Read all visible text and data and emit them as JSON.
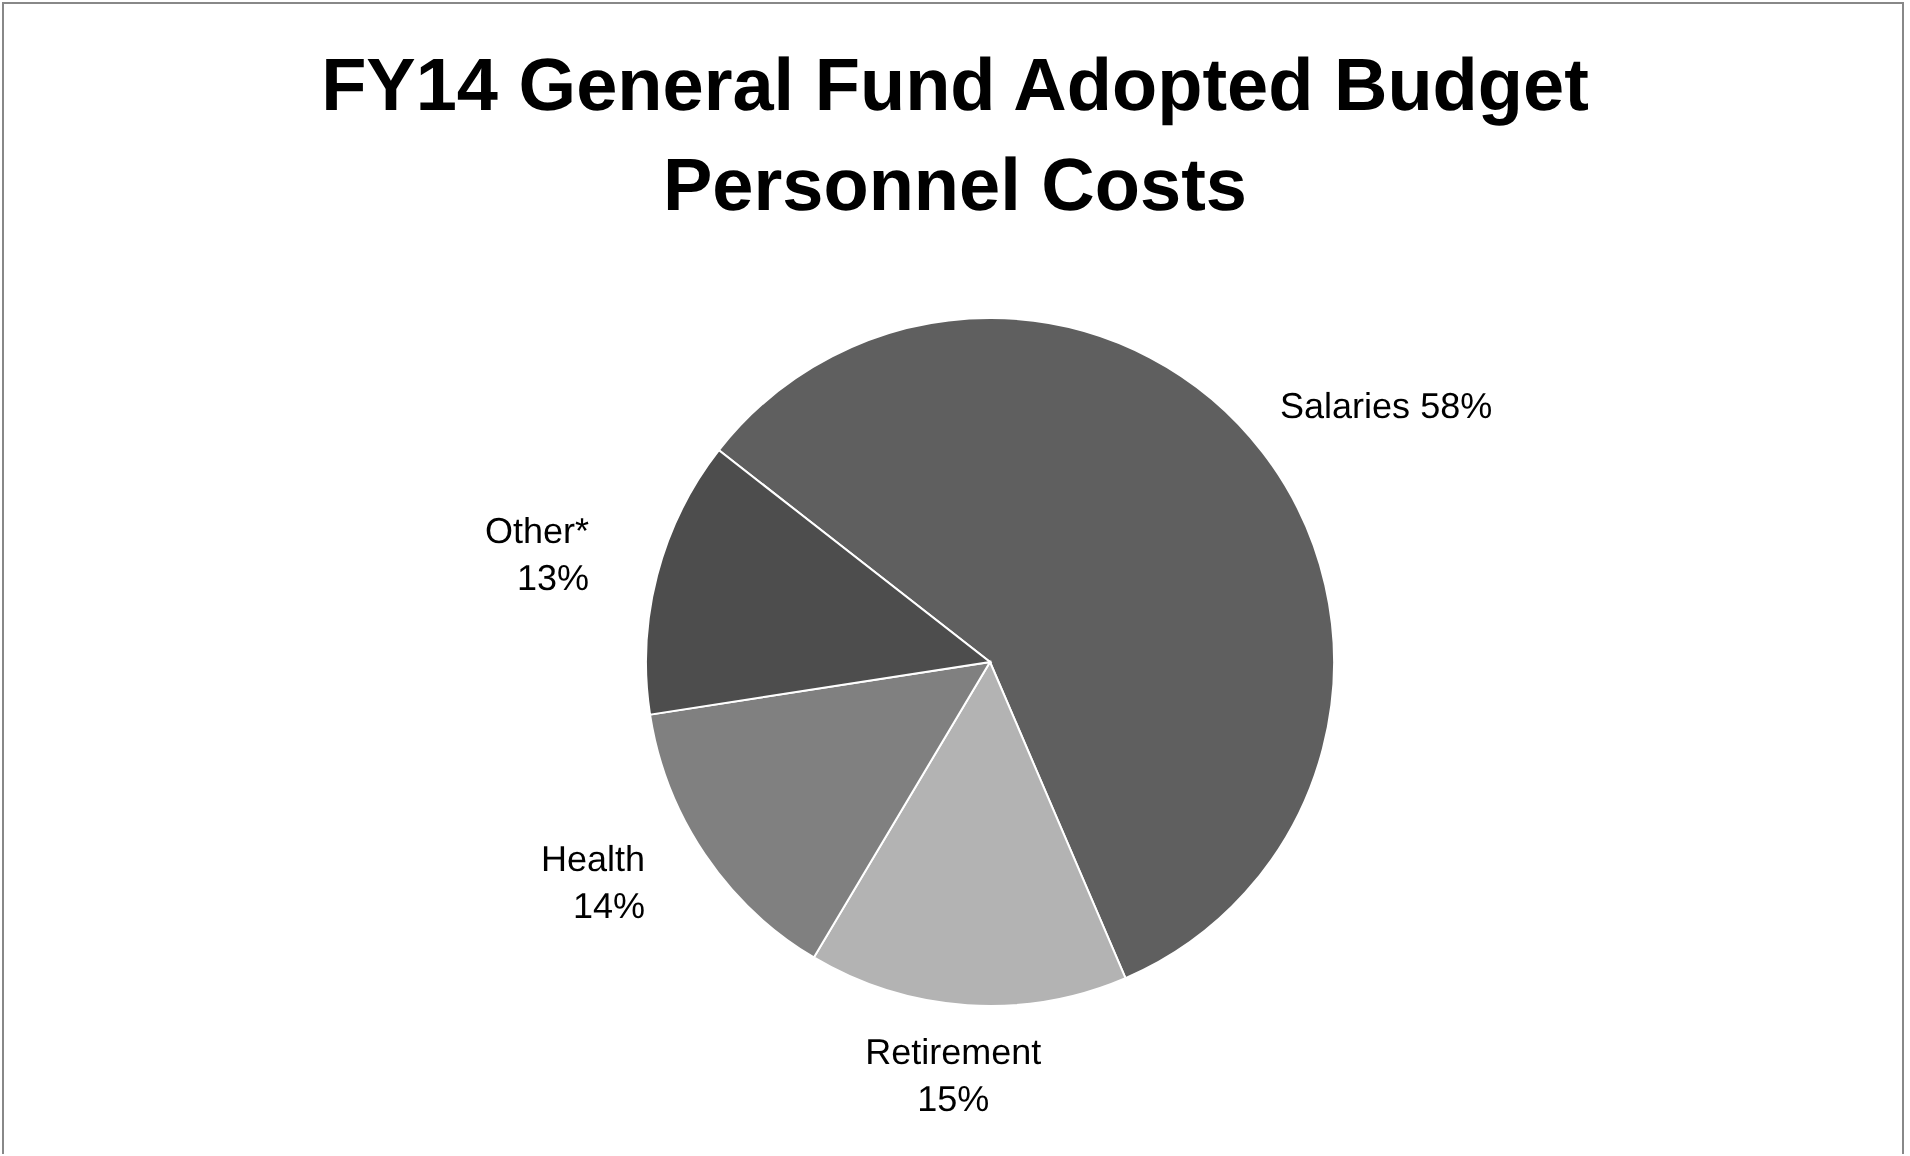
{
  "chart_data": {
    "type": "pie",
    "title": "FY14 General Fund Adopted Budget Personnel Costs",
    "categories": [
      "Salaries",
      "Retirement",
      "Health",
      "Other*"
    ],
    "values": [
      58,
      15,
      14,
      13
    ],
    "value_labels": [
      "58%",
      "15%",
      "14%",
      "13%"
    ],
    "colors": [
      "#5f5f5f",
      "#b3b3b3",
      "#808080",
      "#4d4d4d"
    ],
    "legend": false
  }
}
